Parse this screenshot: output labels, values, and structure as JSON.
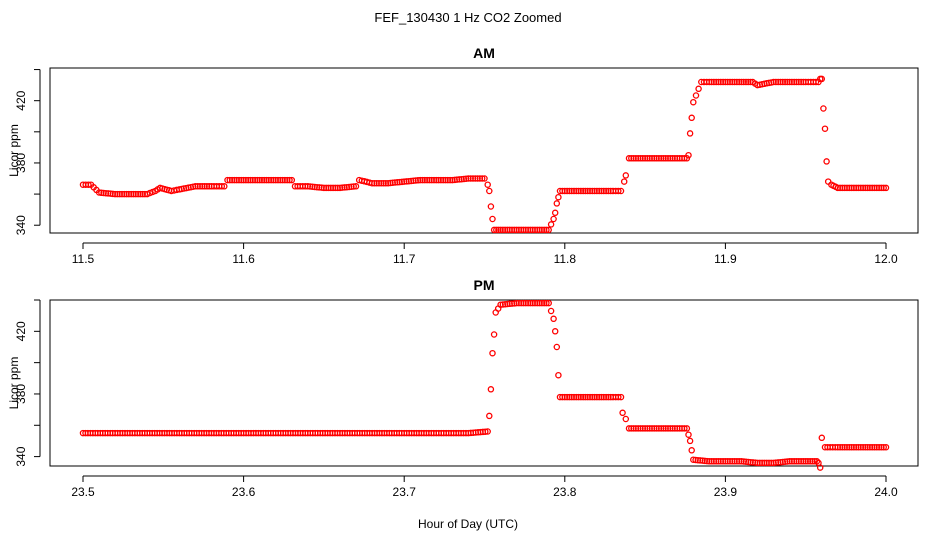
{
  "figure": {
    "title": "FEF_130430  1 Hz CO2 Zoomed",
    "xlabel": "Hour of Day (UTC)"
  },
  "colors": {
    "points": "#ff0000",
    "axes": "#000000",
    "background": "#ffffff"
  },
  "chart_data": [
    {
      "type": "scatter",
      "title": "AM",
      "xlabel": "Hour of Day (UTC)",
      "ylabel": "Licor ppm",
      "xlim": [
        11.5,
        12.0
      ],
      "ylim": [
        335,
        441
      ],
      "xticks": [
        11.5,
        11.6,
        11.7,
        11.8,
        11.9,
        12.0
      ],
      "xtick_labels": [
        "11.5",
        "11.6",
        "11.7",
        "11.8",
        "11.9",
        "12.0"
      ],
      "yticks": [
        340,
        360,
        380,
        400,
        420,
        440
      ],
      "ytick_labels": [
        "340",
        "",
        "380",
        "",
        "420",
        ""
      ],
      "grid": false,
      "marker": "open-circle",
      "series": [
        {
          "x": [
            11.5,
            11.505,
            11.51,
            11.52,
            11.53,
            11.54,
            11.545,
            11.548,
            11.555,
            11.56,
            11.57,
            11.58,
            11.588,
            11.59,
            11.6,
            11.61,
            11.62,
            11.63,
            11.632,
            11.64,
            11.65,
            11.66,
            11.67,
            11.672,
            11.68,
            11.69,
            11.7,
            11.71,
            11.72,
            11.73,
            11.74,
            11.75,
            11.752,
            11.753,
            11.754,
            11.755,
            11.756,
            11.76,
            11.77,
            11.78,
            11.79,
            11.793,
            11.794,
            11.795,
            11.796,
            11.797,
            11.8,
            11.81,
            11.82,
            11.83,
            11.835,
            11.837,
            11.838,
            11.84,
            11.85,
            11.86,
            11.87,
            11.876,
            11.877,
            11.878,
            11.879,
            11.88,
            11.885,
            11.89,
            11.9,
            11.91,
            11.917,
            11.92,
            11.93,
            11.94,
            11.95,
            11.958,
            11.959,
            11.96,
            11.961,
            11.962,
            11.963,
            11.964,
            11.966,
            11.97,
            11.98,
            11.99,
            12.0
          ],
          "y": [
            366,
            366,
            361,
            360,
            360,
            360,
            362,
            364,
            362,
            363,
            365,
            365,
            365,
            369,
            369,
            369,
            369,
            369,
            365,
            365,
            364,
            364,
            365,
            369,
            367,
            367,
            368,
            369,
            369,
            369,
            370,
            370,
            366,
            362,
            352,
            344,
            337,
            337,
            337,
            337,
            337,
            344,
            348,
            354,
            358,
            362,
            362,
            362,
            362,
            362,
            362,
            368,
            372,
            383,
            383,
            383,
            383,
            383,
            385,
            399,
            409,
            419,
            432,
            432,
            432,
            432,
            432,
            430,
            432,
            432,
            432,
            432,
            434,
            434,
            415,
            402,
            381,
            368,
            366,
            364,
            364,
            364,
            364
          ]
        }
      ]
    },
    {
      "type": "scatter",
      "title": "PM",
      "xlabel": "Hour of Day (UTC)",
      "ylabel": "Licor ppm",
      "xlim": [
        23.5,
        24.0
      ],
      "ylim": [
        334,
        440
      ],
      "xticks": [
        23.5,
        23.6,
        23.7,
        23.8,
        23.9,
        24.0
      ],
      "xtick_labels": [
        "23.5",
        "23.6",
        "23.7",
        "23.8",
        "23.9",
        "24.0"
      ],
      "yticks": [
        340,
        360,
        380,
        400,
        420,
        440
      ],
      "ytick_labels": [
        "340",
        "",
        "380",
        "",
        "420",
        ""
      ],
      "grid": false,
      "marker": "open-circle",
      "series": [
        {
          "x": [
            23.5,
            23.52,
            23.54,
            23.56,
            23.58,
            23.6,
            23.62,
            23.64,
            23.66,
            23.68,
            23.7,
            23.72,
            23.74,
            23.752,
            23.753,
            23.754,
            23.755,
            23.756,
            23.757,
            23.76,
            23.77,
            23.78,
            23.79,
            23.793,
            23.794,
            23.795,
            23.796,
            23.797,
            23.8,
            23.81,
            23.82,
            23.83,
            23.835,
            23.836,
            23.838,
            23.84,
            23.85,
            23.86,
            23.87,
            23.876,
            23.877,
            23.878,
            23.879,
            23.88,
            23.89,
            23.9,
            23.91,
            23.92,
            23.93,
            23.94,
            23.95,
            23.957,
            23.958,
            23.959,
            23.96,
            23.962,
            23.97,
            23.98,
            23.99,
            24.0
          ],
          "y": [
            355,
            355,
            355,
            355,
            355,
            355,
            355,
            355,
            355,
            355,
            355,
            355,
            355,
            356,
            366,
            383,
            406,
            418,
            432,
            437,
            438,
            438,
            438,
            428,
            420,
            410,
            392,
            378,
            378,
            378,
            378,
            378,
            378,
            368,
            364,
            358,
            358,
            358,
            358,
            358,
            354,
            350,
            344,
            338,
            337,
            337,
            337,
            336,
            336,
            337,
            337,
            337,
            336,
            333,
            352,
            346,
            346,
            346,
            346,
            346
          ]
        }
      ]
    }
  ]
}
